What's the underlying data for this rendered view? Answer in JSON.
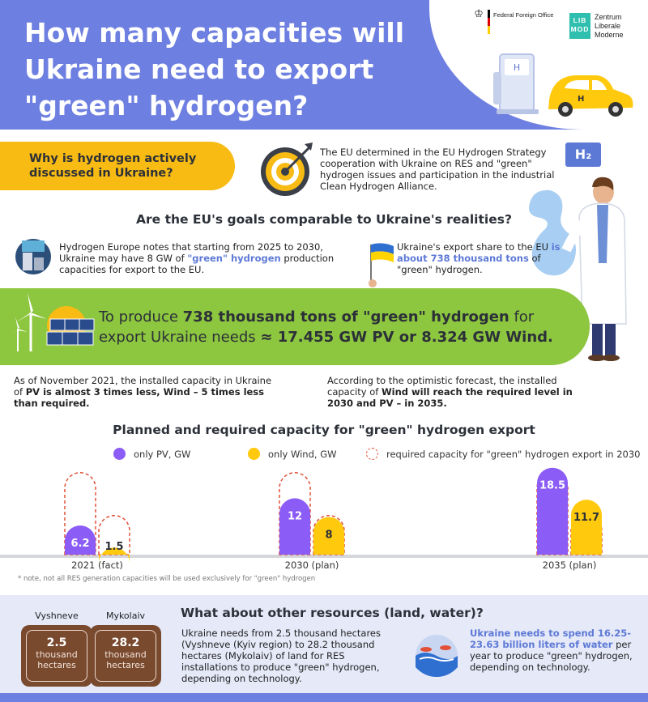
{
  "header": {
    "title": "How many capacities will Ukraine need to export \"green\" hydrogen?",
    "logo_ffo": "Federal Foreign Office",
    "logo_libmod_top": "LIB",
    "logo_libmod_bottom": "MOD",
    "logo_zlm_1": "Zentrum",
    "logo_zlm_2": "Liberale",
    "logo_zlm_3": "Moderne",
    "colors": {
      "primary": "#6d7fe0",
      "accent_yellow": "#f7bb13",
      "accent_green": "#8dc63f",
      "purple": "#8b5cf6",
      "yellow": "#ffc90e"
    }
  },
  "section1": {
    "question": "Why is hydrogen actively discussed in Ukraine?",
    "eu_text": "The EU determined in the EU Hydrogen Strategy cooperation with Ukraine on RES and \"green\" hydrogen issues and participation in the industrial Clean Hydrogen Alliance.",
    "h2_badge": "H₂"
  },
  "section2": {
    "question": "Are the EU's goals comparable to Ukraine's realities?",
    "he_1": "Hydrogen Europe notes that starting from 2025 to 2030, Ukraine may have 8 GW of ",
    "he_highlight": "\"green\" hydrogen",
    "he_2": " production capacities for export to the EU.",
    "ue_1": "Ukraine's export share to the EU ",
    "ue_highlight": "is about 738 thousand tons",
    "ue_2": " of \"green\" hydrogen."
  },
  "banner": {
    "l1a": "To produce ",
    "l1b": "738 thousand tons of \"green\" hydrogen",
    "l1c": " for",
    "l2a": "export Ukraine needs ",
    "l2b": "≈ 17.455 GW PV or 8.324 GW Wind."
  },
  "facts": {
    "nov_1": "As of November 2021, the installed capacity in Ukraine of ",
    "nov_2": "PV is almost 3 times less, Wind – 5 times less than required.",
    "opt_1": "According to the optimistic forecast, the installed capacity of ",
    "opt_2": "Wind will reach the required level in 2030 and PV – in 2035."
  },
  "chart_data": {
    "type": "bar",
    "title": "Planned and required capacity for \"green\" hydrogen export",
    "categories": [
      "2021 (fact)",
      "2030 (plan)",
      "2035 (plan)"
    ],
    "series": [
      {
        "name": "only PV, GW",
        "color": "#8b5cf6",
        "values": [
          6.2,
          12,
          18.5
        ]
      },
      {
        "name": "only Wind, GW",
        "color": "#ffc90e",
        "values": [
          1.5,
          8,
          11.7
        ]
      }
    ],
    "required": {
      "name": "required capacity for \"green\" hydrogen export in 2030",
      "pv": 17.455,
      "wind": 8.324
    },
    "value_labels": [
      [
        "6.2",
        "1.5"
      ],
      [
        "12",
        "8"
      ],
      [
        "18.5",
        "11.7"
      ]
    ],
    "xlabel": "",
    "ylabel": "",
    "note": "* note, not all RES generation capacities will be used exclusively for \"green\" hydrogen"
  },
  "section3": {
    "question": "What about other resources (land, water)?",
    "city1": "Vyshneve",
    "city1_value": "2.5",
    "city2": "Mykolaiv",
    "city2_value": "28.2",
    "unit_1": "thousand",
    "unit_2": "hectares",
    "land_text": "Ukraine needs from 2.5 thousand hectares (Vyshneve (Kyiv region) to 28.2 thousand hectares (Mykolaiv) of land for RES installations to produce \"green\" hydrogen, depending on technology.",
    "water_highlight": "Ukraine needs to spend 16.25-23.63 billion liters of water",
    "water_rest": " per year to produce \"green\" hydrogen, depending on technology."
  }
}
